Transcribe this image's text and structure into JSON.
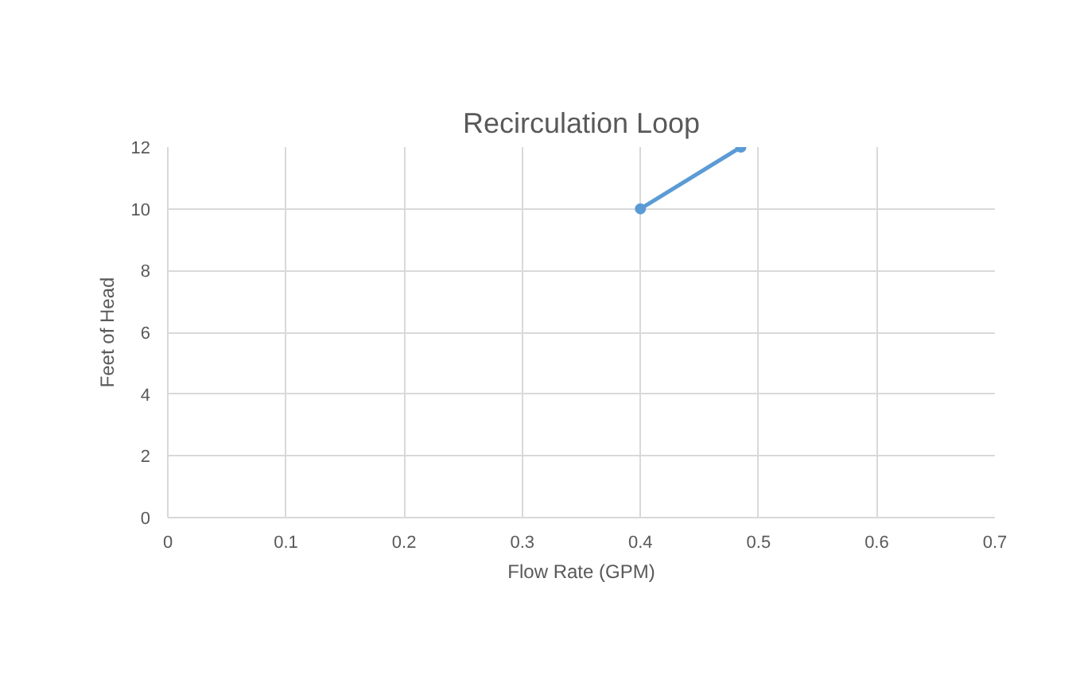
{
  "chart_data": {
    "type": "line",
    "title": "Recirculation Loop",
    "xlabel": "Flow Rate (GPM)",
    "ylabel": "Feet of Head",
    "x": [
      0.4,
      0.485
    ],
    "series": [
      {
        "color": "#5b9bd5",
        "values": [
          10,
          12
        ]
      }
    ],
    "xlim": [
      0,
      0.7
    ],
    "xticks": [
      0,
      0.1,
      0.2,
      0.3,
      0.4,
      0.5,
      0.6,
      0.7
    ],
    "ylim": [
      0,
      12
    ],
    "yticks": [
      0,
      2,
      4,
      6,
      8,
      10,
      12
    ],
    "grid": true,
    "marker": "circle",
    "line_style": "solid"
  }
}
